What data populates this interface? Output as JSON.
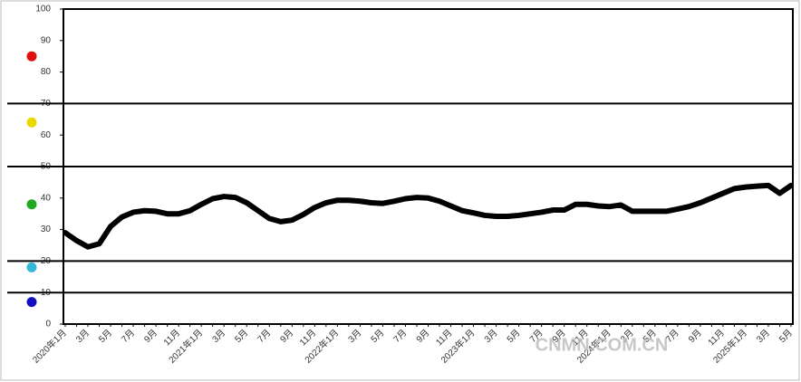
{
  "chart_data": {
    "type": "line",
    "categories": [
      "2020年1月",
      null,
      "3月",
      null,
      "5月",
      null,
      "7月",
      null,
      "9月",
      null,
      "11月",
      null,
      "2021年1月",
      null,
      "3月",
      null,
      "5月",
      null,
      "7月",
      null,
      "9月",
      null,
      "11月",
      null,
      "2022年1月",
      null,
      "3月",
      null,
      "5月",
      null,
      "7月",
      null,
      "9月",
      null,
      "11月",
      null,
      "2023年1月",
      null,
      "3月",
      null,
      "5月",
      null,
      "7月",
      null,
      "9月",
      null,
      "11月",
      null,
      "2024年1月",
      null,
      "3月",
      null,
      "5月",
      null,
      "7月",
      null,
      "9月",
      null,
      "11月",
      null,
      "2025年1月",
      null,
      "3月",
      null,
      "5月"
    ],
    "values": [
      29,
      26.5,
      24.5,
      25.5,
      31,
      34,
      35.5,
      36,
      35.8,
      35,
      35,
      36,
      38,
      39.8,
      40.5,
      40.2,
      38.5,
      36,
      33.5,
      32.5,
      33,
      34.8,
      37,
      38.5,
      39.3,
      39.3,
      39,
      38.5,
      38.3,
      39,
      39.8,
      40.2,
      40,
      39,
      37.5,
      36,
      35.3,
      34.5,
      34.2,
      34.2,
      34.5,
      35,
      35.5,
      36.2,
      36.2,
      38,
      38,
      37.5,
      37.3,
      37.8,
      35.8,
      35.8,
      35.8,
      35.8,
      36.5,
      37.3,
      38.5,
      40,
      41.5,
      43,
      43.5,
      43.8,
      44,
      41.5,
      44
    ],
    "color": "#000000",
    "ylim": [
      0,
      100
    ],
    "yticks": [
      0,
      10,
      20,
      30,
      40,
      50,
      60,
      70,
      80,
      90,
      100
    ],
    "zone_lines": [
      70,
      50,
      20,
      10
    ],
    "signals": [
      {
        "color": "#e01010",
        "value": 85
      },
      {
        "color": "#e8d800",
        "value": 64
      },
      {
        "color": "#1faa1f",
        "value": 38
      },
      {
        "color": "#35b8d8",
        "value": 18
      },
      {
        "color": "#1010c0",
        "value": 7
      }
    ],
    "watermark": "CNMN.COM.CN"
  }
}
